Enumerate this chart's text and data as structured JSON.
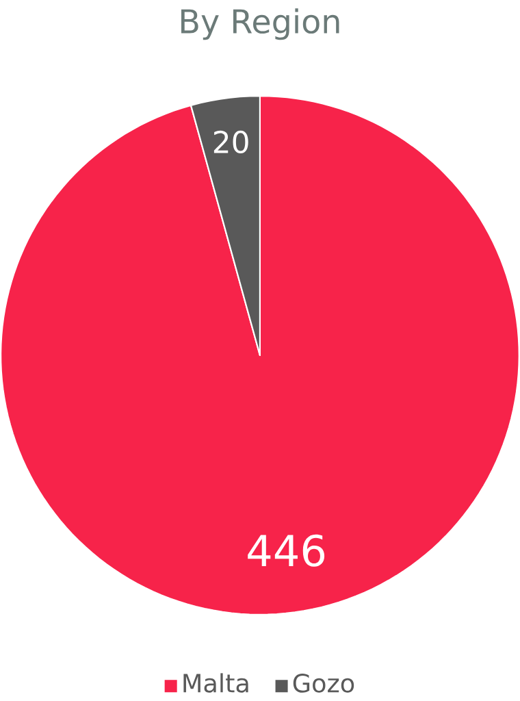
{
  "chart_data": {
    "type": "pie",
    "title": "By Region",
    "categories": [
      "Malta",
      "Gozo"
    ],
    "values": [
      446,
      20
    ],
    "colors": [
      "#f7234a",
      "#595959"
    ],
    "data_labels": true,
    "legend": "bottom"
  }
}
